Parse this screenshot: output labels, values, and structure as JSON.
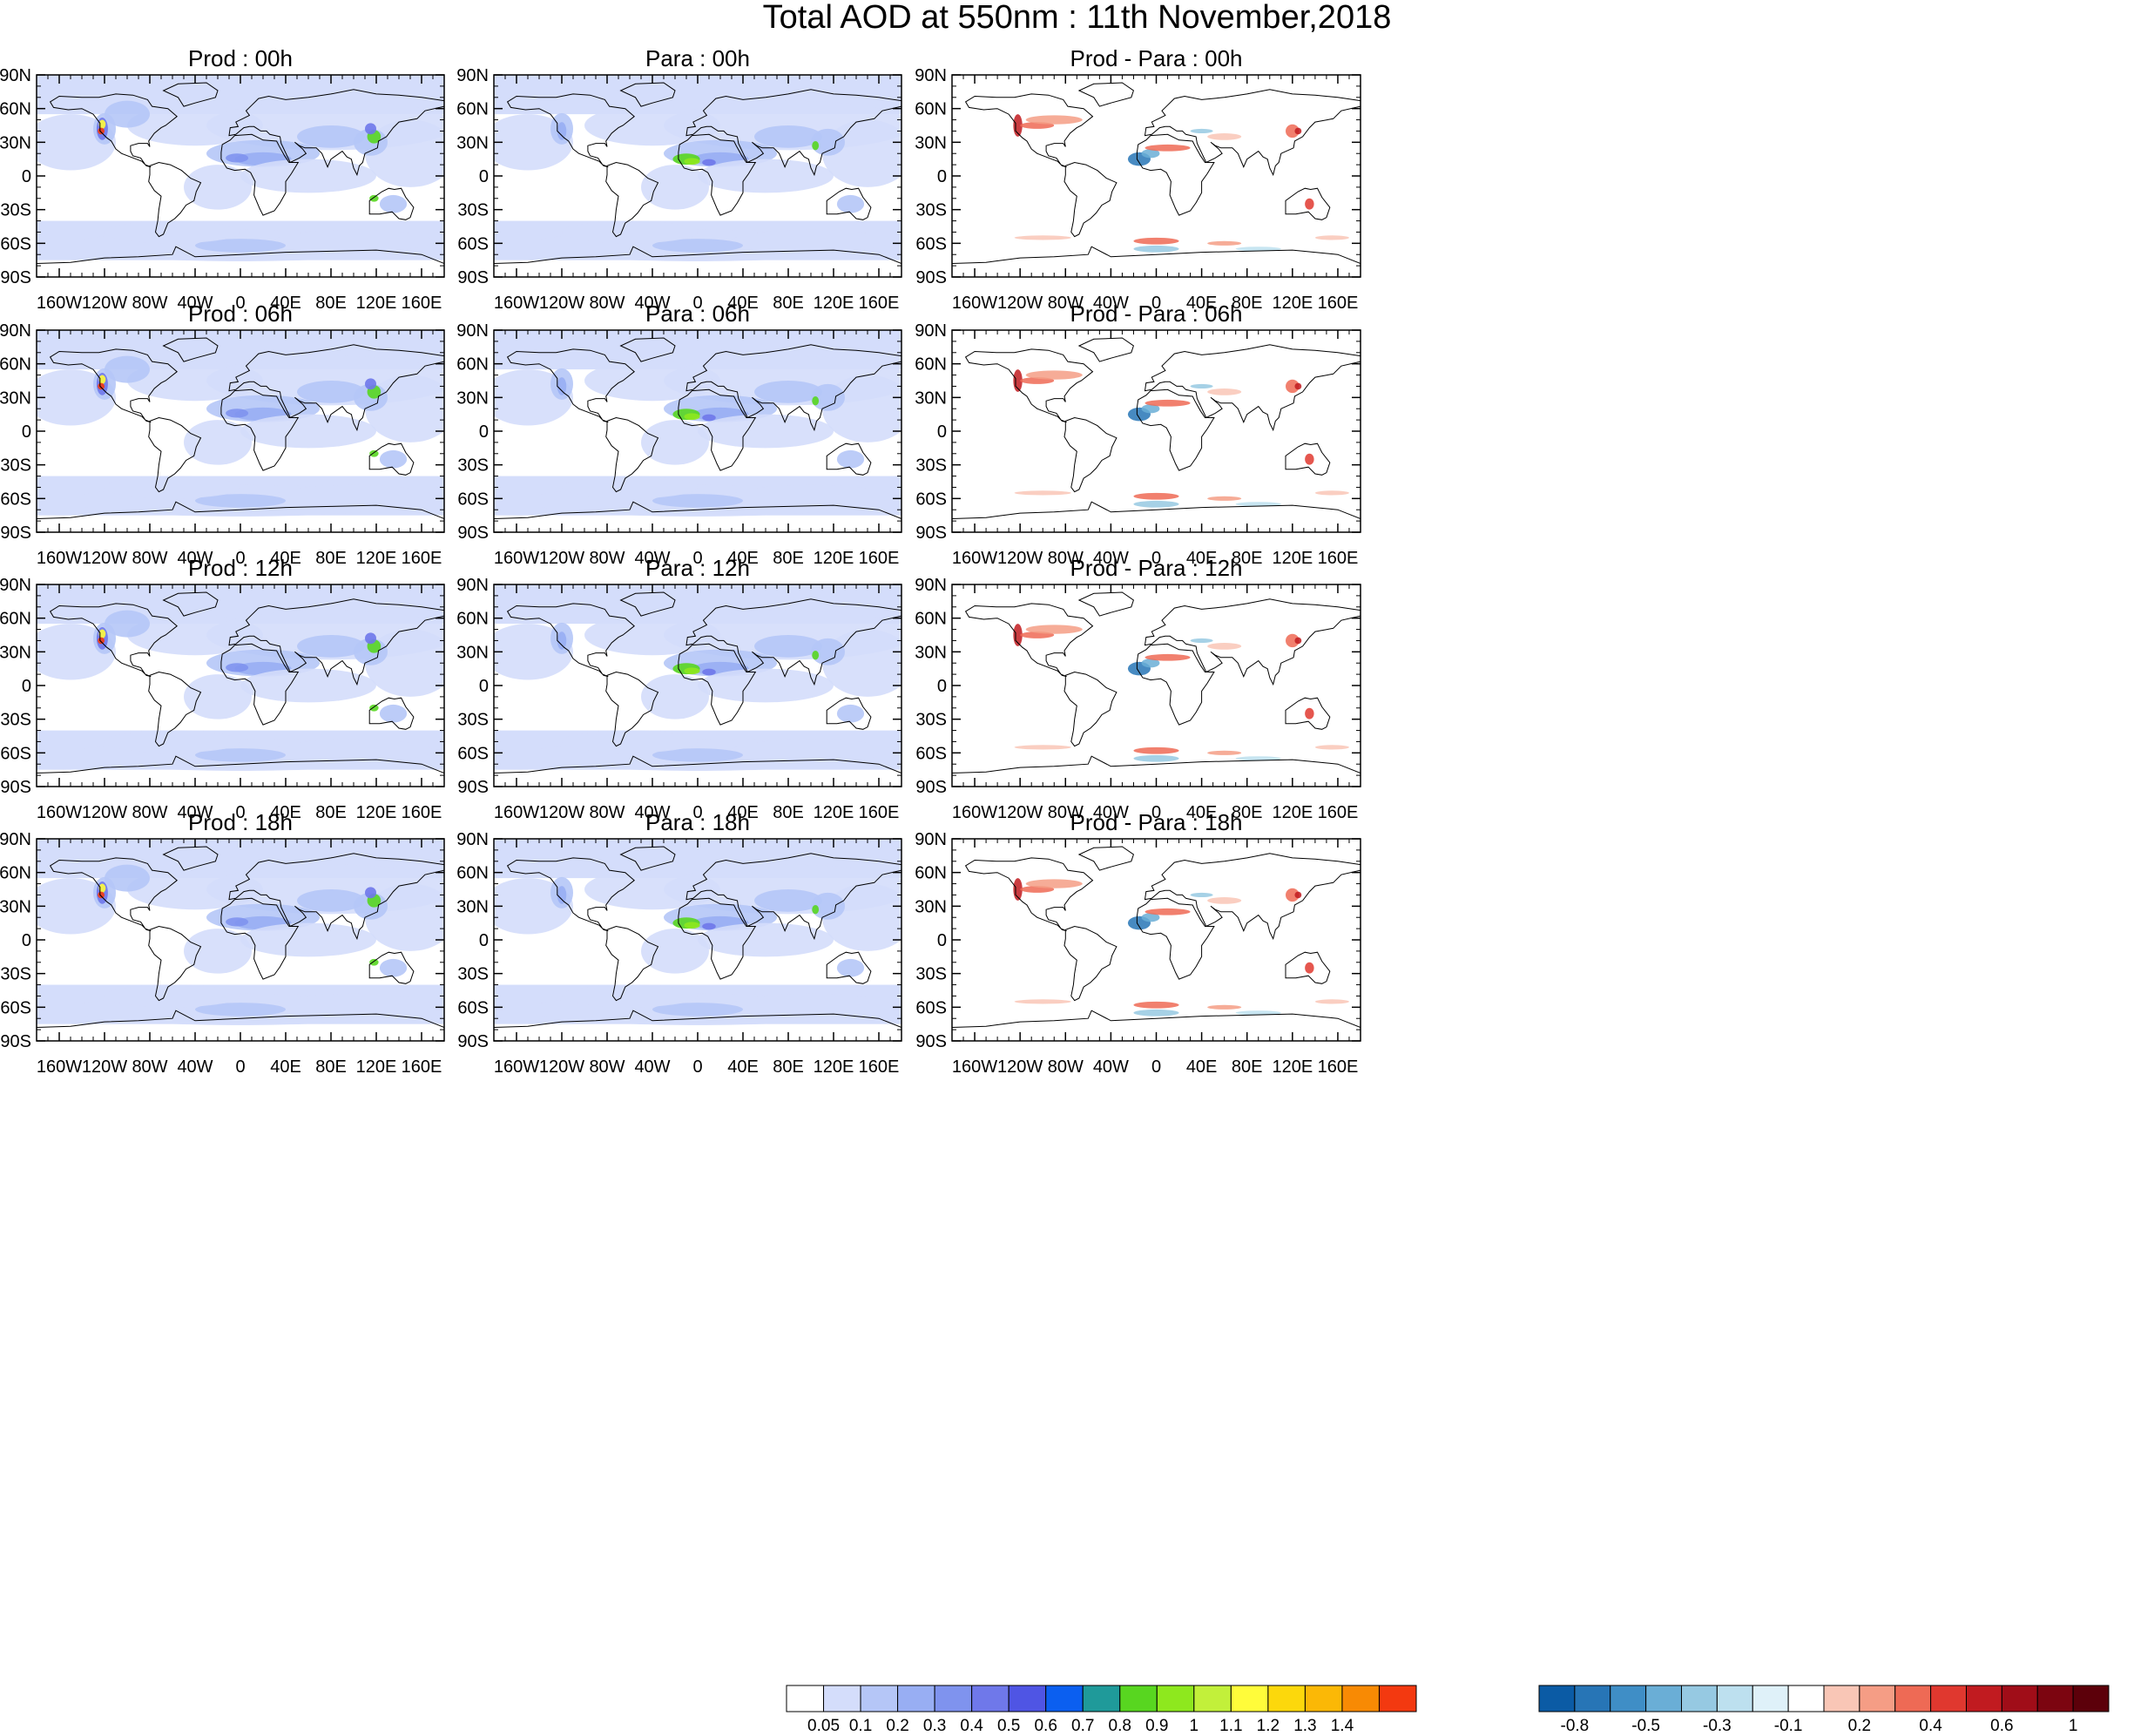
{
  "title": "Total AOD at 550nm : 11th November,2018",
  "panels": [
    {
      "title": "Prod : 00h",
      "kind": "aod"
    },
    {
      "title": "Para : 00h",
      "kind": "aod"
    },
    {
      "title": "Prod - Para : 00h",
      "kind": "diff"
    },
    {
      "title": "Prod : 06h",
      "kind": "aod"
    },
    {
      "title": "Para : 06h",
      "kind": "aod"
    },
    {
      "title": "Prod - Para : 06h",
      "kind": "diff"
    },
    {
      "title": "Prod : 12h",
      "kind": "aod"
    },
    {
      "title": "Para : 12h",
      "kind": "aod"
    },
    {
      "title": "Prod - Para : 12h",
      "kind": "diff"
    },
    {
      "title": "Prod : 18h",
      "kind": "aod"
    },
    {
      "title": "Para : 18h",
      "kind": "aod"
    },
    {
      "title": "Prod - Para : 18h",
      "kind": "diff"
    }
  ],
  "axes": {
    "lat_labels": [
      "90N",
      "60N",
      "30N",
      "0",
      "30S",
      "60S",
      "90S"
    ],
    "lon_labels": [
      "160W",
      "120W",
      "80W",
      "40W",
      "0",
      "40E",
      "80E",
      "120E",
      "160E"
    ],
    "lon_values": [
      -160,
      -120,
      -80,
      -40,
      0,
      40,
      80,
      120,
      160
    ],
    "lat_values": [
      90,
      60,
      30,
      0,
      -30,
      -60,
      -90
    ]
  },
  "aod_colorbar": {
    "labels": [
      "0.05",
      "0.1",
      "0.2",
      "0.3",
      "0.4",
      "0.5",
      "0.6",
      "0.7",
      "0.8",
      "0.9",
      "1",
      "1.1",
      "1.2",
      "1.3",
      "1.4"
    ],
    "colors": [
      "#ffffff",
      "#d4ddfb",
      "#b5c6f7",
      "#98aef3",
      "#7f93ee",
      "#6f78ea",
      "#4f55e4",
      "#0b5ff0",
      "#1f9a9a",
      "#58d620",
      "#8ee81e",
      "#c2f03a",
      "#fffc3a",
      "#fcd80c",
      "#fbb806",
      "#f88a04",
      "#f33910"
    ]
  },
  "diff_colorbar": {
    "labels": [
      "-0.8",
      "-0.5",
      "-0.3",
      "-0.1",
      "0.2",
      "0.4",
      "0.6",
      "1"
    ],
    "label_positions": [
      1,
      3,
      5,
      7,
      9,
      11,
      13,
      15
    ],
    "colors": [
      "#0b5ba5",
      "#2775b6",
      "#3f8ec6",
      "#6aaed6",
      "#96c9e2",
      "#bde0ef",
      "#dff1f9",
      "#ffffff",
      "#f9c6b6",
      "#f59d85",
      "#ee6a55",
      "#e0382f",
      "#c11b20",
      "#a00d18",
      "#7c0510",
      "#5c000a"
    ]
  }
}
